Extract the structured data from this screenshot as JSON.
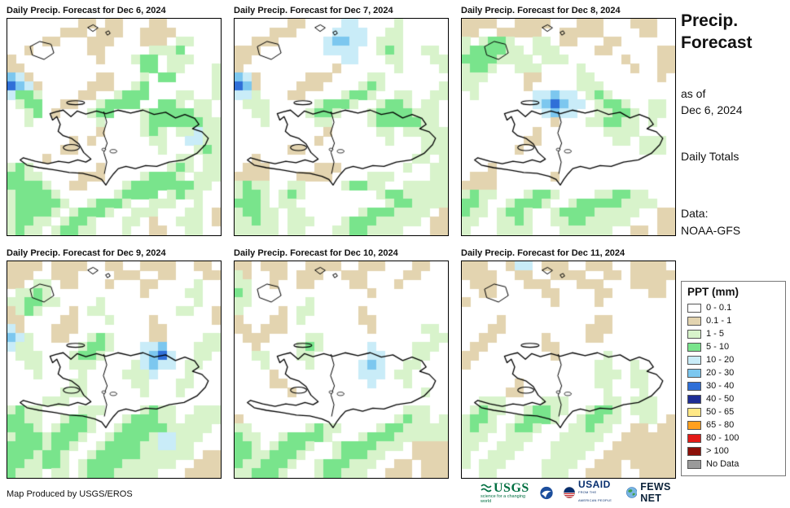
{
  "panels": [
    {
      "title": "Daily Precip. Forecast for Dec 6, 2024",
      "grid": [
        "........tt.tt...tt......",
        "......ttt.ttt..tttt.....",
        "....tt...ttt...ttt.gg...",
        "..t......tt.....gggG....",
        "t.........t...gGG.ggg...",
        "tt.............GG.gg...g",
        "Bbt.......tt...g.GG....g",
        "DBbt.....ttt..gG.......g",
        "bGGg....tt..gGGG...gg..g",
        ".gGG..tt..gGGGG..GGg.gg.",
        "..gG.t...gGG...gGGGGGgg.",
        "..g.......g....gGGGGGGgg",
        "..........t....gGg.ggbgg",
        ".......t.t......gg..bbgg",
        "......tt.........g...gGg",
        "....t..............gg.gg",
        "gGg.......t.......gGg.gg",
        "GGgg....ttt....gGGGg.ggg",
        "GGGGg..tt....gGGGGGGGgg.",
        "gGGGGg......gGGGG.gGgg..",
        "gGGGGGg..gGGGg..ggg..g..",
        "gGGGGg.gGGGg..ggg...gg.t",
        "gGGgg.gGGg...gg.t..ggg.t",
        "gGgg.gGGgg...g..tt..gg.."
      ]
    },
    {
      "title": "Daily Precip. Forecast for Dec 7, 2024",
      "grid": [
        "......tt....bb....g.....",
        "....ttt....bbbb..gg.....",
        "..ttt.....bBBbb.ggg.....",
        "ttt.......bbbb..gGg..gg.",
        "tt..........bb...gg...gg",
        "t..........t......g....g",
        "Bbt.....ttt....gg.......",
        "DBt....ttt....gGg......g",
        "bbg...tt....gGGg..gg..gg",
        ".ggg.....gGGGg..gGGg.gg.",
        "..gg....gGGg...gGGGGggg.",
        "...g.....gg....gGGGGGgg.",
        "..........t.....gg.ggggg",
        ".........t.......g...ggg",
        "......tt.............ggg",
        "..t.................gg.g",
        ".ttt.....ttt.......g..gg",
        "tttt...tttt....ggg....gg",
        "gGgg..gg....gGGgg..ggggg",
        "gGGg.gGg........gGGggggg",
        "GGGg.gg..........gGGgggg",
        "gGGgg.gg......gGGGgggg.t",
        "ggGgg.ggg...gGGGggggg.tt",
        "ggggg.gg...ggGGgggg...tt"
      ]
    },
    {
      "title": "Daily Precip. Forecast for Dec 8, 2024",
      "grid": [
        "tttt..tttt...ttt...ttt..",
        "tt..ttttt..ttttt....tt..",
        "g.gGGg..gg.tt...tt......",
        "gGGGGgg.ggg....tt.....tt",
        "GGGGgggg.ggg......t...tt",
        "gGGg..ggg....g.....t..tt",
        "ggg....tt....gg.......t.",
        "gg.....t.....ggg........",
        ".g......bbBbb.gGg.......",
        "........bBDBbb.gGGg..gg.",
        ".........bBbb..ggGGg.gg.",
        "..........t...ggGGgg.g..",
        "........t.......gggg....",
        ".......tt........gg.ggg.",
        "......t.............ggg.",
        "........................",
        "...t....................",
        ".ttt......t.............",
        "tttt....................",
        "gGgg...gGGg....ggGGgg...",
        "GGg..gGGGg..gGGGGGgggg..",
        "Ggg.gGGg..gGGGGggggg..tt",
        "gg..ggGg..ggGGggggg...tt",
        "g...gggg...gggggg..tt.tt"
      ]
    },
    {
      "title": "Daily Precip. Forecast for Dec 9, 2024",
      "grid": [
        "tttt.tttt..tt..tttt..tt.",
        "ttt..ttt....ttt..tt...tt",
        "tt.gg.tt...t...tt....g..",
        ".ggGg..........t....gg..",
        "ggGGgg....g..........g..",
        "tgGg...t.gg........gg..t",
        "tt....tt...g....t......t",
        "bt...ttt........tt......",
        "Bbg..tt..gGg....tt....gg",
        "bgg.....gGGg...bbB...ggg",
        ".ggg...gGGg....bBDb..gg.",
        "..gg...ggg....gbBbb.gg..",
        "...g....g....gggb...g...",
        ".......gg.....gg...gg...",
        "......ggg......g...g....",
        "....ggg.................",
        "gGgg....ggg....gGgg..ggg",
        "GGgg..gGGg...gGGGgg.gggg",
        "GGGg.gGGGg..gGGGGGggggg.",
        "gGGGgGGGg..gGGGGgbbggg..",
        "GGGGgGGg..gGGGGggbbgg...",
        "GGGgGGg..gGGGGGgggggg.tt",
        "GGggGGg.gGGGGgggggg..ttt",
        "Gggg.gg.gGGGggggg...tttt"
      ]
    },
    {
      "title": "Daily Precip. Forecast for Dec 10, 2024",
      "grid": [
        "tt.ttt..tttt..ttt...tt..",
        "gt..tt.ttt..ttt....tt...",
        "gg..t..tt....tt...t.....",
        "Gg.............t........",
        "gg......g...............",
        "g....t.gg.....t.........",
        "t...tt.g......tt........",
        "tt.ttt.........t.....gg.",
        ".ttt....gg............gg",
        "..t....gGg.....b....ggg.",
        "..gg...gg......bb...gg..",
        "...g....g.....bBb..gg...",
        "....t.........bbb.gg....",
        "....tt.........b...g....",
        "......t..............g..",
        "........................",
        "...................ggg..",
        "t.................gGgg.g",
        "gg......gGgg....gGGggggg",
        "Ggg..gGGGGg...gGGGgggggg",
        "GGg.gGGGg..gGGGGggg.tttt",
        "GGggGGGg...gGGGgg...tttt",
        "GggGGGg..gGGGggg..tt.ttt",
        "ggGGGg...gGGggg..ttt.ttt"
      ]
    },
    {
      "title": "Daily Precip. Forecast for Dec 11, 2024",
      "grid": [
        "ttt..tbb.ttt..ttt..tttt.",
        "tttt..tt..tttt..tt.ttttt",
        ".ttt...ttt...ttt...tttt.",
        "..tt.....tt....tt....tt.",
        "t.........t....t........",
        "........................",
        "....t..........tt.......",
        "...tt.........ttt.......",
        "..tt.....t....tt........",
        ".tt......tt.............",
        "tt........t.....g.......",
        "t..............gg..g....",
        "...............ggg.gg...",
        "......t........gg..gg...",
        ".....tt.........g...g...",
        "..ggg....ggg....gg.ggg..",
        ".gGgg..gGGgg..gGGg.ggg..",
        "gGGg..gGGGg..gGGgg..gg.t",
        "gGgg.gGGg...ggGgg..tt.tt",
        "ggg..ggg...ggggg..tttttt",
        "gg..ggg...ggggg..ttttttt",
        "g..ggg....gggg..tttttttt",
        "g.ggg....gggg..ttt.ttttt",
        "..gg.....ggg..tttt..tttt"
      ]
    }
  ],
  "palette": {
    ".": "#ffffff",
    "t": "#e3d4b0",
    "g": "#d8f3cb",
    "G": "#79e48c",
    "b": "#c9ecf8",
    "B": "#7cc7ef",
    "D": "#2f6fd8",
    "N": "#1e2d95"
  },
  "sidebar": {
    "title_line1": "Precip.",
    "title_line2": "Forecast",
    "asof_line1": "as of",
    "asof_line2": "Dec 6, 2024",
    "totals": "Daily Totals",
    "data_label": "Data:",
    "data_source": "NOAA-GFS"
  },
  "legend": {
    "title": "PPT (mm)",
    "entries": [
      {
        "label": "0 - 0.1",
        "color": "#ffffff"
      },
      {
        "label": "0.1 - 1",
        "color": "#e3d4b0"
      },
      {
        "label": "1 - 5",
        "color": "#d8f3cb"
      },
      {
        "label": "5 - 10",
        "color": "#79e48c"
      },
      {
        "label": "10 - 20",
        "color": "#c9ecf8"
      },
      {
        "label": "20 - 30",
        "color": "#7cc7ef"
      },
      {
        "label": "30 - 40",
        "color": "#2f6fd8"
      },
      {
        "label": "40 - 50",
        "color": "#1e2d95"
      },
      {
        "label": "50 - 65",
        "color": "#ffe885"
      },
      {
        "label": "65 - 80",
        "color": "#ffa01e"
      },
      {
        "label": "80 - 100",
        "color": "#e31a17"
      },
      {
        "label": "> 100",
        "color": "#8c1009"
      },
      {
        "label": "No Data",
        "color": "#9a9a9a"
      }
    ]
  },
  "footer": {
    "credit": "Map Produced by USGS/EROS",
    "logos": {
      "usgs": "USGS",
      "usgs_tagline": "science for a changing world",
      "usaid": "USAID",
      "usaid_tagline": "FROM THE AMERICAN PEOPLE",
      "fewsnet": "FEWS NET"
    }
  },
  "geo": {
    "hispaniola": [
      [
        0.2,
        0.438
      ],
      [
        0.212,
        0.468
      ],
      [
        0.232,
        0.452
      ],
      [
        0.248,
        0.488
      ],
      [
        0.238,
        0.52
      ],
      [
        0.262,
        0.54
      ],
      [
        0.3,
        0.552
      ],
      [
        0.335,
        0.578
      ],
      [
        0.358,
        0.618
      ],
      [
        0.392,
        0.648
      ],
      [
        0.368,
        0.662
      ],
      [
        0.33,
        0.652
      ],
      [
        0.288,
        0.665
      ],
      [
        0.24,
        0.658
      ],
      [
        0.19,
        0.67
      ],
      [
        0.132,
        0.658
      ],
      [
        0.075,
        0.642
      ],
      [
        0.06,
        0.652
      ],
      [
        0.092,
        0.676
      ],
      [
        0.15,
        0.688
      ],
      [
        0.22,
        0.698
      ],
      [
        0.29,
        0.71
      ],
      [
        0.352,
        0.714
      ],
      [
        0.41,
        0.728
      ],
      [
        0.442,
        0.742
      ],
      [
        0.462,
        0.768
      ],
      [
        0.478,
        0.742
      ],
      [
        0.498,
        0.716
      ],
      [
        0.52,
        0.692
      ],
      [
        0.556,
        0.682
      ],
      [
        0.6,
        0.692
      ],
      [
        0.648,
        0.678
      ],
      [
        0.7,
        0.682
      ],
      [
        0.758,
        0.662
      ],
      [
        0.828,
        0.652
      ],
      [
        0.888,
        0.622
      ],
      [
        0.928,
        0.582
      ],
      [
        0.942,
        0.552
      ],
      [
        0.912,
        0.522
      ],
      [
        0.868,
        0.508
      ],
      [
        0.898,
        0.488
      ],
      [
        0.878,
        0.46
      ],
      [
        0.832,
        0.442
      ],
      [
        0.788,
        0.458
      ],
      [
        0.742,
        0.432
      ],
      [
        0.688,
        0.442
      ],
      [
        0.636,
        0.422
      ],
      [
        0.578,
        0.436
      ],
      [
        0.518,
        0.422
      ],
      [
        0.462,
        0.438
      ],
      [
        0.418,
        0.426
      ],
      [
        0.368,
        0.44
      ],
      [
        0.328,
        0.426
      ],
      [
        0.298,
        0.452
      ],
      [
        0.262,
        0.422
      ],
      [
        0.228,
        0.43
      ]
    ],
    "border": [
      [
        0.452,
        0.43
      ],
      [
        0.466,
        0.478
      ],
      [
        0.45,
        0.528
      ],
      [
        0.468,
        0.575
      ],
      [
        0.452,
        0.618
      ],
      [
        0.466,
        0.662
      ],
      [
        0.455,
        0.715
      ]
    ],
    "gonave": [
      0.3,
      0.595,
      0.038,
      0.014
    ],
    "tortuga": [
      0.32,
      0.388,
      0.042,
      0.009
    ],
    "islands": [
      [
        [
          0.108,
          0.128
        ],
        [
          0.152,
          0.105
        ],
        [
          0.205,
          0.118
        ],
        [
          0.218,
          0.158
        ],
        [
          0.172,
          0.188
        ],
        [
          0.118,
          0.168
        ]
      ],
      [
        [
          0.378,
          0.04
        ],
        [
          0.402,
          0.028
        ],
        [
          0.425,
          0.042
        ],
        [
          0.402,
          0.058
        ]
      ],
      [
        [
          0.462,
          0.062
        ],
        [
          0.475,
          0.056
        ],
        [
          0.482,
          0.068
        ],
        [
          0.47,
          0.075
        ]
      ]
    ],
    "lakes": [
      [
        0.497,
        0.612,
        0.016,
        0.008
      ],
      [
        0.452,
        0.604,
        0.009,
        0.006
      ]
    ]
  }
}
